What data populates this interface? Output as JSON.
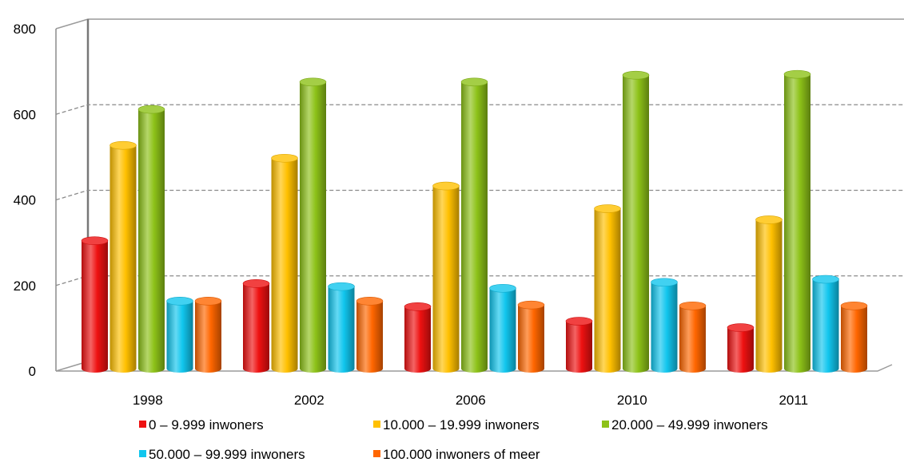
{
  "chart_data": {
    "type": "bar",
    "style": "3d-cylinder",
    "categories": [
      "1998",
      "2002",
      "2006",
      "2010",
      "2011"
    ],
    "series": [
      {
        "name": "0 – 9.999 inwoners",
        "color": "#ee1111",
        "values": [
          297,
          197,
          143,
          109,
          94
        ]
      },
      {
        "name": "10.000 – 19.999 inwoners",
        "color": "#ffc000",
        "values": [
          520,
          490,
          425,
          372,
          346
        ]
      },
      {
        "name": "20.000 – 49.999 inwoners",
        "color": "#8dc218",
        "values": [
          604,
          668,
          668,
          684,
          686
        ]
      },
      {
        "name": "50.000 – 99.999 inwoners",
        "color": "#11c6ee",
        "values": [
          156,
          190,
          186,
          200,
          207
        ]
      },
      {
        "name": "100.000 inwoners of meer",
        "color": "#ff6600",
        "values": [
          156,
          156,
          147,
          145,
          145
        ]
      }
    ],
    "yticks": [
      "0",
      "200",
      "400",
      "600",
      "800"
    ],
    "ylim": [
      0,
      800
    ],
    "title": "",
    "xlabel": "",
    "ylabel": "",
    "grid": true,
    "legend_position": "bottom"
  }
}
